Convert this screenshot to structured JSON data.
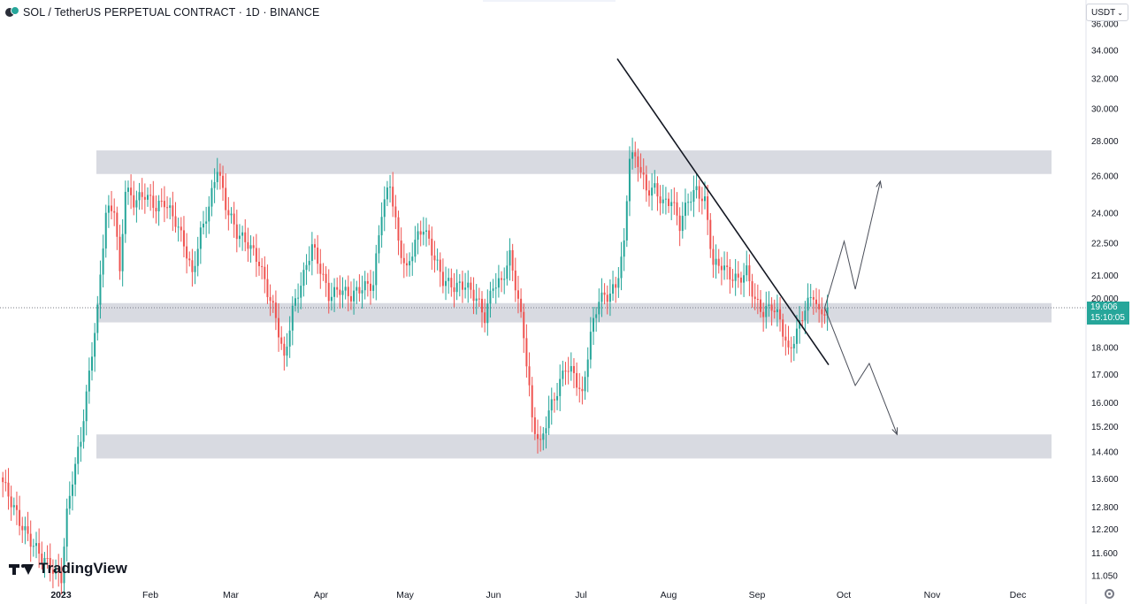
{
  "header": {
    "title": "SOL / TetherUS PERPETUAL CONTRACT · 1D · BINANCE",
    "currency": "USDT"
  },
  "branding": {
    "logo_text": "TradingView"
  },
  "last_price": {
    "value": "19.606",
    "countdown": "15:10:05"
  },
  "colors": {
    "up": "#26a69a",
    "down": "#ef5350",
    "zone": "#d1d4dc"
  },
  "chart_data": {
    "type": "candlestick",
    "y_scale": "log",
    "ylim": [
      10.8,
      36.5
    ],
    "y_ticks": [
      "11.050",
      "11.600",
      "12.200",
      "12.800",
      "13.600",
      "14.400",
      "15.200",
      "16.000",
      "17.000",
      "18.000",
      "19.200",
      "20.000",
      "21.000",
      "22.500",
      "24.000",
      "26.000",
      "28.000",
      "30.000",
      "32.000",
      "34.000",
      "36.000"
    ],
    "x_ticks": [
      "2023",
      "Feb",
      "Mar",
      "Apr",
      "May",
      "Jun",
      "Jul",
      "Aug",
      "Sep",
      "Oct",
      "Nov",
      "Dec"
    ],
    "price_anchors": [
      [
        0,
        13.5
      ],
      [
        6,
        12.4
      ],
      [
        10,
        11.9
      ],
      [
        14,
        11.5
      ],
      [
        18,
        11.2
      ],
      [
        21,
        11.0
      ],
      [
        23,
        12.6
      ],
      [
        25,
        13.6
      ],
      [
        28,
        14.8
      ],
      [
        31,
        17.0
      ],
      [
        34,
        19.5
      ],
      [
        37,
        24.0
      ],
      [
        40,
        24.3
      ],
      [
        42,
        21.0
      ],
      [
        44,
        25.3
      ],
      [
        47,
        24.6
      ],
      [
        51,
        25.0
      ],
      [
        55,
        24.3
      ],
      [
        58,
        24.6
      ],
      [
        62,
        23.6
      ],
      [
        65,
        22.5
      ],
      [
        68,
        21.0
      ],
      [
        71,
        23.0
      ],
      [
        74,
        24.3
      ],
      [
        77,
        26.5
      ],
      [
        80,
        24.4
      ],
      [
        84,
        23.0
      ],
      [
        88,
        22.5
      ],
      [
        92,
        21.6
      ],
      [
        95,
        20.3
      ],
      [
        98,
        19.2
      ],
      [
        101,
        17.5
      ],
      [
        104,
        19.5
      ],
      [
        108,
        21.0
      ],
      [
        111,
        22.4
      ],
      [
        114,
        21.3
      ],
      [
        117,
        20.1
      ],
      [
        121,
        20.4
      ],
      [
        125,
        20.1
      ],
      [
        129,
        20.5
      ],
      [
        133,
        20.6
      ],
      [
        136,
        24.1
      ],
      [
        139,
        25.6
      ],
      [
        142,
        22.5
      ],
      [
        145,
        21.2
      ],
      [
        148,
        22.6
      ],
      [
        151,
        23.3
      ],
      [
        155,
        21.8
      ],
      [
        158,
        20.8
      ],
      [
        162,
        20.5
      ],
      [
        166,
        20.6
      ],
      [
        170,
        20.0
      ],
      [
        173,
        19.2
      ],
      [
        176,
        20.6
      ],
      [
        179,
        20.7
      ],
      [
        182,
        21.9
      ],
      [
        184,
        20.6
      ],
      [
        187,
        18.5
      ],
      [
        190,
        15.4
      ],
      [
        193,
        14.6
      ],
      [
        196,
        15.7
      ],
      [
        199,
        16.4
      ],
      [
        202,
        17.3
      ],
      [
        205,
        17.0
      ],
      [
        208,
        16.2
      ],
      [
        211,
        18.5
      ],
      [
        214,
        20.0
      ],
      [
        217,
        20.1
      ],
      [
        220,
        20.5
      ],
      [
        223,
        22.4
      ],
      [
        225,
        27.2
      ],
      [
        228,
        26.8
      ],
      [
        231,
        25.2
      ],
      [
        234,
        25.3
      ],
      [
        237,
        24.5
      ],
      [
        240,
        24.7
      ],
      [
        243,
        23.4
      ],
      [
        246,
        24.7
      ],
      [
        249,
        25.2
      ],
      [
        252,
        24.6
      ],
      [
        255,
        21.5
      ],
      [
        258,
        21.5
      ],
      [
        261,
        21.0
      ],
      [
        264,
        20.8
      ],
      [
        267,
        21.2
      ],
      [
        270,
        19.9
      ],
      [
        273,
        19.4
      ],
      [
        276,
        19.7
      ],
      [
        279,
        19.1
      ],
      [
        282,
        17.8
      ],
      [
        285,
        18.6
      ],
      [
        288,
        19.6
      ],
      [
        291,
        20.2
      ],
      [
        293,
        19.3
      ],
      [
        295,
        19.5
      ],
      [
        296,
        19.606
      ]
    ],
    "zones": [
      {
        "low": 26.1,
        "high": 27.45
      },
      {
        "low": 19.0,
        "high": 19.8
      },
      {
        "low": 14.2,
        "high": 14.95
      }
    ],
    "trendline": [
      [
        0.0,
        33.4
      ],
      [
        0.0,
        17.35
      ]
    ],
    "projection_up": [
      [
        295,
        19.6
      ],
      [
        302,
        22.6
      ],
      [
        306,
        20.4
      ],
      [
        315,
        25.7
      ]
    ],
    "projection_down": [
      [
        295,
        19.6
      ],
      [
        306,
        16.6
      ],
      [
        311,
        17.4
      ],
      [
        321,
        14.95
      ]
    ],
    "current_price": 19.606
  }
}
